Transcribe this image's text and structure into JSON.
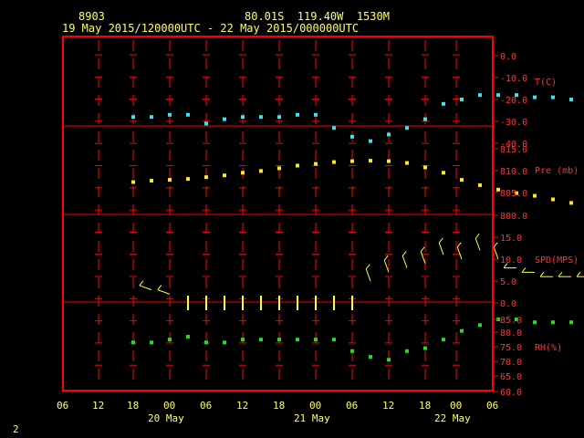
{
  "header": {
    "station_id": "8903",
    "location": "80.01S  119.40W  1530M",
    "time_range": "19 May 2015/120000UTC - 22 May 2015/000000UTC"
  },
  "footer": {
    "page_number": "2"
  },
  "colors": {
    "frame": "#ff0000",
    "temp": "#33e6f0",
    "pres": "#ffe81a",
    "wind": "#ffff33",
    "rh": "#22dd22",
    "text": "#ffff66",
    "scale": "#ff3333"
  },
  "chart_data": [
    {
      "type": "scatter",
      "panel": "temperature",
      "ylabel": "T(C)",
      "yticks": [
        "0.0",
        "-10.0",
        "-20.0",
        "-30.0",
        "-40.0"
      ],
      "ylim": [
        -45,
        5
      ],
      "x_hours": [
        0,
        3,
        6,
        9,
        12,
        15,
        18,
        21,
        24,
        27,
        30,
        33,
        36,
        39,
        42,
        45,
        48,
        51,
        54,
        57,
        60,
        63,
        66,
        69,
        72,
        75,
        78,
        81,
        84,
        87,
        90,
        93,
        96,
        99,
        102,
        105,
        108
      ],
      "values": [
        -28,
        -28,
        -27,
        -27,
        -31,
        -29,
        -28,
        -28,
        -28,
        -27,
        -27,
        -33,
        -37,
        -39,
        -36,
        -33,
        -29,
        -22,
        -20,
        -18,
        -18,
        -18,
        -19,
        -19,
        -20,
        -19,
        -20,
        -23,
        -26,
        -29,
        -30,
        -31,
        -31,
        -32,
        -32,
        -33,
        -35
      ],
      "outliers": [
        {
          "x": 80,
          "y": 0
        }
      ]
    },
    {
      "type": "scatter",
      "panel": "pressure",
      "ylabel": "Pre (mb)",
      "yticks": [
        "815.0",
        "810.0",
        "805.0",
        "800.0"
      ],
      "ylim": [
        800,
        815
      ],
      "x_hours": [
        0,
        3,
        6,
        9,
        12,
        15,
        18,
        21,
        24,
        27,
        30,
        33,
        36,
        39,
        42,
        45,
        48,
        51,
        54,
        57,
        60,
        63,
        66,
        69,
        72,
        75,
        78,
        81,
        84,
        87,
        90,
        93,
        96,
        99,
        102,
        105,
        108
      ],
      "values": [
        807.5,
        807.8,
        808.0,
        808.2,
        808.6,
        809.0,
        809.6,
        810.0,
        810.6,
        811.2,
        811.6,
        812.0,
        812.2,
        812.3,
        812.2,
        811.8,
        810.8,
        809.6,
        808.0,
        806.8,
        805.8,
        805.0,
        804.4,
        803.6,
        802.8,
        801.8,
        801.0,
        800.4,
        800.0,
        800.2,
        800.6,
        801.8,
        803.6,
        805.4,
        807.2,
        809.0,
        811.2
      ]
    },
    {
      "type": "barbs",
      "panel": "wind",
      "ylabel": "SPD(MPS)",
      "yticks": [
        "15.0",
        "10.0",
        "5.0",
        "0.0"
      ],
      "ylim": [
        0,
        17
      ],
      "x_hours": [
        3,
        6,
        9,
        12,
        15,
        18,
        21,
        24,
        27,
        30,
        33,
        36,
        39,
        42,
        45,
        48,
        51,
        54,
        57,
        60,
        63,
        66,
        69,
        72,
        75,
        78,
        81,
        84,
        87,
        90,
        93,
        96,
        99,
        102,
        105,
        108
      ],
      "values": [
        3,
        2,
        0,
        0,
        0,
        0,
        0,
        0,
        0,
        0,
        0,
        0,
        5,
        7,
        8,
        9,
        11,
        10,
        12,
        10,
        8,
        7,
        6,
        6,
        6,
        5,
        7,
        7,
        9,
        10,
        11,
        10,
        9,
        11,
        10,
        7
      ]
    },
    {
      "type": "scatter",
      "panel": "relative_humidity",
      "ylabel": "RH(%)",
      "yticks": [
        "85.0",
        "80.0",
        "75.0",
        "70.0",
        "65.0",
        "60.0"
      ],
      "ylim": [
        60,
        88
      ],
      "x_hours": [
        0,
        3,
        6,
        9,
        12,
        15,
        18,
        21,
        24,
        27,
        30,
        33,
        36,
        39,
        42,
        45,
        48,
        51,
        54,
        57,
        60,
        63,
        66,
        69,
        72,
        75,
        78,
        81,
        84,
        87,
        90,
        93,
        96,
        99,
        102,
        105,
        108
      ],
      "values": [
        77,
        77,
        78,
        79,
        77,
        77,
        78,
        78,
        78,
        78,
        78,
        78,
        74,
        72,
        71,
        74,
        75,
        78,
        81,
        83,
        85,
        85,
        84,
        84,
        84,
        83,
        82,
        80,
        77,
        76,
        75,
        75,
        75,
        75,
        75,
        75,
        74
      ]
    },
    {
      "type": "axis",
      "panel": "time_axis",
      "x_tick_labels": [
        "06",
        "12",
        "18",
        "00",
        "06",
        "12",
        "18",
        "00",
        "06",
        "12",
        "18",
        "00",
        "06"
      ],
      "date_labels": [
        "20 May",
        "21 May",
        "22 May"
      ]
    }
  ]
}
